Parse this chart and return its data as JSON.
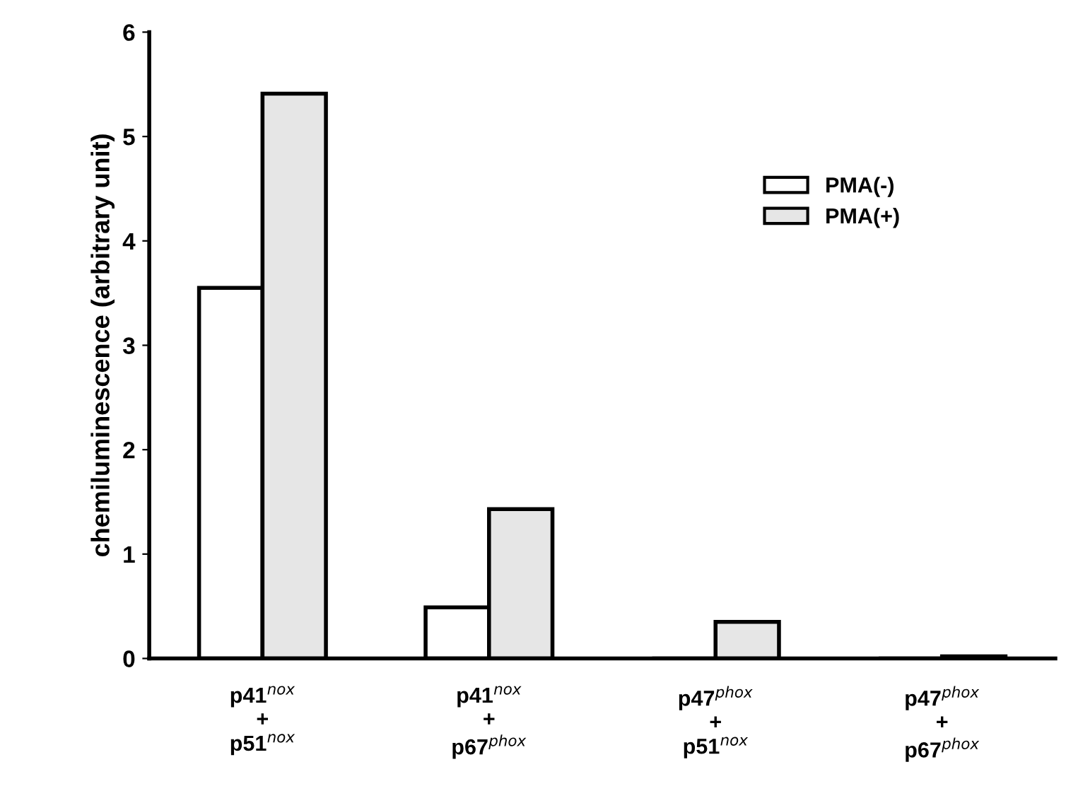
{
  "chart_data": {
    "type": "bar",
    "ylabel": "chemiluminescence (arbitrary unit)",
    "categories": [
      "p41$^{nox}$\n+\np51$^{nox}$",
      "p41$^{nox}$\n+\np67$^{phox}$",
      "p47$^{phox}$\n+\np51$^{nox}$",
      "p47$^{phox}$\n+\np67$^{phox}$"
    ],
    "series": [
      {
        "name": "PMA(-)",
        "color": "#ffffff",
        "values": [
          3.55,
          0.49,
          0,
          0
        ]
      },
      {
        "name": "PMA(+)",
        "color": "#e6e6e6",
        "values": [
          5.41,
          1.43,
          0.35,
          0.02
        ]
      }
    ],
    "ylim": [
      0,
      6
    ],
    "yticks": [
      0,
      1,
      2,
      3,
      4,
      5,
      6
    ],
    "grid": false,
    "legend": "top right"
  }
}
